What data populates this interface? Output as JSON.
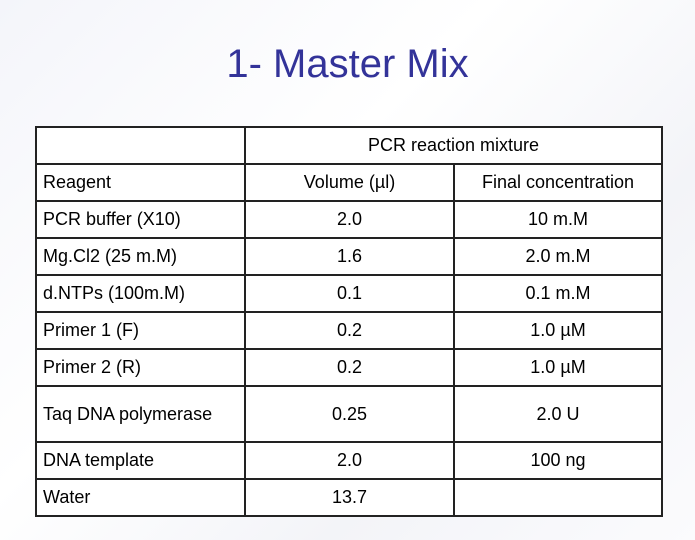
{
  "title": "1- Master Mix",
  "table": {
    "group_header": "PCR reaction mixture",
    "columns": [
      "Reagent",
      "Volume (µl)",
      "Final concentration"
    ],
    "rows": [
      [
        "PCR buffer (X10)",
        "2.0",
        "10 m.M"
      ],
      [
        "Mg.Cl2 (25 m.M)",
        "1.6",
        "2.0 m.M"
      ],
      [
        "d.NTPs (100m.M)",
        "0.1",
        "0.1 m.M"
      ],
      [
        "Primer 1 (F)",
        "0.2",
        "1.0 µM"
      ],
      [
        "Primer 2 (R)",
        "0.2",
        "1.0 µM"
      ],
      [
        "Taq DNA polymerase",
        "0.25",
        "2.0 U"
      ],
      [
        "DNA template",
        "2.0",
        "100 ng"
      ],
      [
        "Water",
        "13.7"
      ]
    ]
  }
}
